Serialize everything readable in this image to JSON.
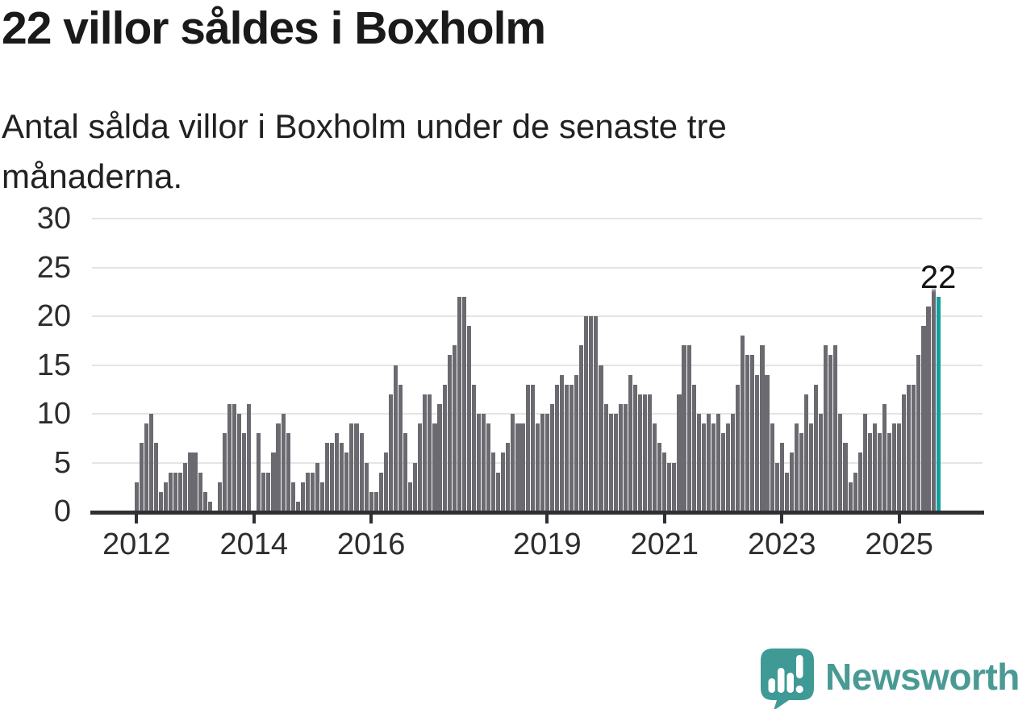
{
  "header": {
    "title": "22 villor såldes i Boxholm",
    "subtitle_lines": [
      "Antal sålda villor i Boxholm under de senaste tre",
      "månaderna."
    ]
  },
  "chart_data": {
    "type": "bar",
    "title": "22 villor såldes i Boxholm",
    "subtitle": "Antal sålda villor i Boxholm under de senaste tre månaderna.",
    "x_start": "2012-01",
    "frequency": "monthly",
    "values": [
      3,
      7,
      9,
      10,
      7,
      2,
      3,
      4,
      4,
      4,
      5,
      6,
      6,
      4,
      2,
      1,
      0,
      3,
      8,
      11,
      11,
      10,
      8,
      11,
      0,
      8,
      4,
      4,
      6,
      9,
      10,
      8,
      3,
      1,
      3,
      4,
      4,
      5,
      3,
      7,
      7,
      8,
      7,
      6,
      9,
      9,
      8,
      5,
      2,
      2,
      4,
      6,
      12,
      15,
      13,
      8,
      3,
      5,
      9,
      12,
      12,
      9,
      11,
      13,
      16,
      17,
      22,
      22,
      19,
      13,
      10,
      10,
      9,
      6,
      4,
      6,
      7,
      10,
      9,
      9,
      13,
      13,
      9,
      10,
      10,
      11,
      13,
      14,
      13,
      13,
      14,
      17,
      20,
      20,
      20,
      15,
      11,
      10,
      10,
      11,
      11,
      14,
      13,
      12,
      12,
      12,
      9,
      7,
      6,
      5,
      5,
      12,
      17,
      17,
      13,
      10,
      9,
      10,
      9,
      10,
      8,
      9,
      10,
      13,
      18,
      16,
      16,
      14,
      17,
      14,
      9,
      5,
      7,
      4,
      6,
      9,
      8,
      12,
      9,
      13,
      10,
      17,
      16,
      17,
      10,
      7,
      3,
      4,
      6,
      10,
      8,
      9,
      8,
      11,
      8,
      9,
      9,
      12,
      13,
      13,
      16,
      19,
      21,
      23,
      22
    ],
    "highlight_last_bar": true,
    "annotation_value": "22",
    "y_ticks": [
      0,
      5,
      10,
      15,
      20,
      25,
      30
    ],
    "x_tick_years": [
      "2012",
      "2014",
      "2016",
      "2019",
      "2021",
      "2023",
      "2025"
    ],
    "ylim": [
      0,
      30
    ],
    "grid": true,
    "legend": "none",
    "colors": {
      "bar": "#6a6a70",
      "highlight": "#12a09e",
      "grid": "#e4e4e4",
      "axis": "#303034",
      "tick_text": "#2d2d2d"
    }
  },
  "footer": {
    "logo_text": "Newsworthy",
    "logo_text_color": "#4a9a94",
    "logo_icon": "newsworthy-speech-bubble-bar-chart-icon",
    "logo_icon_color": "#3f9a95"
  }
}
